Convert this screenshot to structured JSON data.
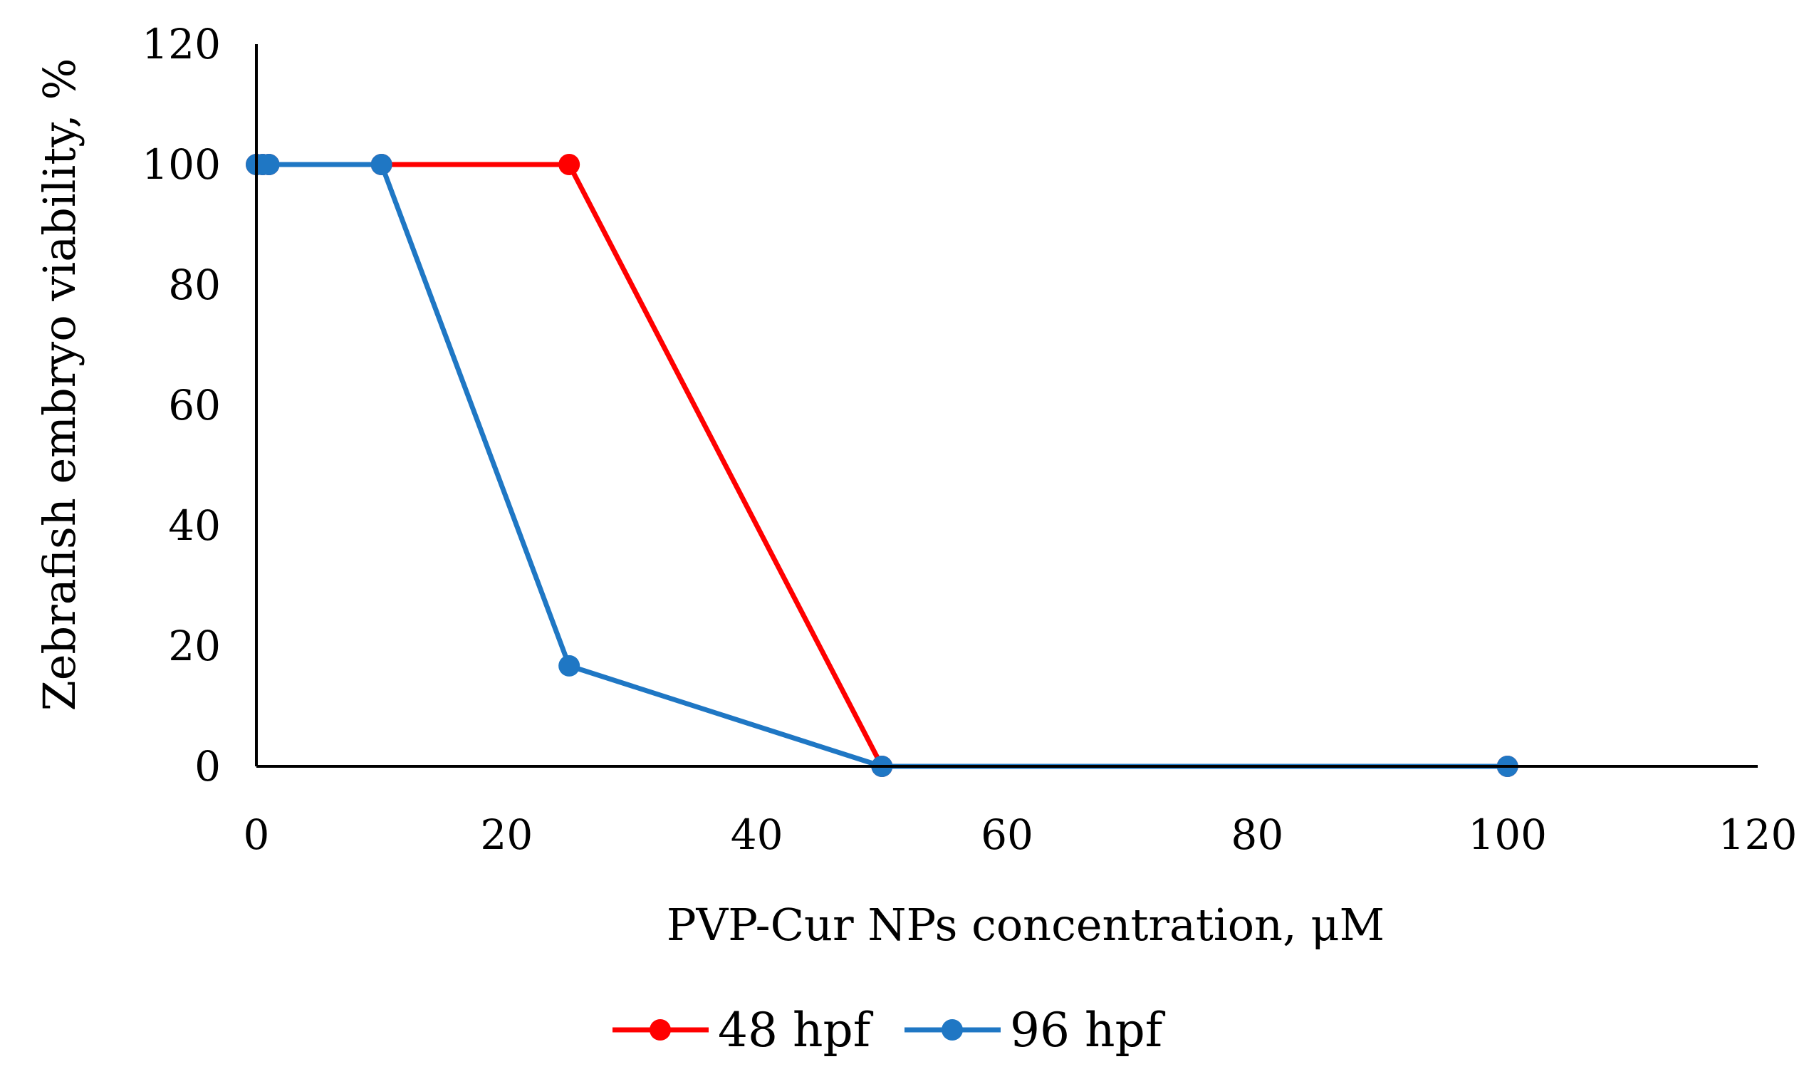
{
  "chart_data": {
    "type": "line",
    "xlabel": "PVP-Cur NPs concentration, μM",
    "ylabel": "Zebrafish embryo viability, %",
    "xlim": [
      0,
      120
    ],
    "ylim": [
      0,
      120
    ],
    "xticks": [
      0,
      20,
      40,
      60,
      80,
      100,
      120
    ],
    "yticks": [
      0,
      20,
      40,
      60,
      80,
      100,
      120
    ],
    "grid": false,
    "legend_position": "bottom",
    "series": [
      {
        "name": "48 hpf",
        "color": "#ff0000",
        "x": [
          0,
          0.5,
          1,
          10,
          25,
          50,
          100
        ],
        "y": [
          100,
          100,
          100,
          100,
          100,
          0,
          0
        ]
      },
      {
        "name": "96 hpf",
        "color": "#1f77c4",
        "x": [
          0,
          0.5,
          1,
          10,
          25,
          50,
          100
        ],
        "y": [
          100,
          100,
          100,
          100,
          16.7,
          0,
          0
        ]
      }
    ]
  }
}
